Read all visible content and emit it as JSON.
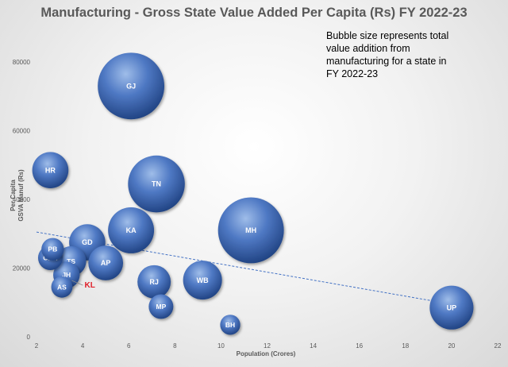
{
  "chart_data": {
    "type": "bubble",
    "title": "Manufacturing - Gross State Value Added Per Capita (Rs) FY 2022-23",
    "note": "Bubble size represents total value addition from manufacturing for a state in FY 2022-23",
    "xlabel": "Population (Crores)",
    "ylabel_line1": "Per Capita",
    "ylabel_line2": "GSVA Manuf (Rs)",
    "xlim": [
      2,
      22
    ],
    "ylim": [
      0,
      80000
    ],
    "xticks": [
      2,
      4,
      6,
      8,
      10,
      12,
      14,
      16,
      18,
      20,
      22
    ],
    "yticks": [
      0,
      20000,
      40000,
      60000,
      80000
    ],
    "trendline": {
      "x": [
        2,
        20
      ],
      "y": [
        30500,
        9500
      ]
    },
    "points": [
      {
        "label": "GJ",
        "x": 6.1,
        "y": 73000,
        "size": 4.4,
        "highlight": false
      },
      {
        "label": "HR",
        "x": 2.6,
        "y": 48500,
        "size": 1.3,
        "highlight": false
      },
      {
        "label": "TN",
        "x": 7.2,
        "y": 44500,
        "size": 3.2,
        "highlight": false
      },
      {
        "label": "MH",
        "x": 11.3,
        "y": 31000,
        "size": 4.3,
        "highlight": false
      },
      {
        "label": "KA",
        "x": 6.1,
        "y": 31000,
        "size": 2.1,
        "highlight": false
      },
      {
        "label": "GD",
        "x": 4.2,
        "y": 27500,
        "size": 1.3,
        "highlight": false
      },
      {
        "label": "PB",
        "x": 2.7,
        "y": 25500,
        "size": 0.5,
        "highlight": false
      },
      {
        "label": "CHH",
        "x": 2.6,
        "y": 23000,
        "size": 0.6,
        "highlight": false
      },
      {
        "label": "TS",
        "x": 3.5,
        "y": 22000,
        "size": 0.9,
        "highlight": false
      },
      {
        "label": "AP",
        "x": 5.0,
        "y": 21500,
        "size": 1.2,
        "highlight": false
      },
      {
        "label": "JH",
        "x": 3.3,
        "y": 18000,
        "size": 0.7,
        "highlight": false
      },
      {
        "label": "AS",
        "x": 3.1,
        "y": 14500,
        "size": 0.45,
        "highlight": false
      },
      {
        "label": "KL",
        "x": 3.6,
        "y": 15000,
        "size": 0.0,
        "highlight": true
      },
      {
        "label": "RJ",
        "x": 7.1,
        "y": 16000,
        "size": 1.1,
        "highlight": false
      },
      {
        "label": "WB",
        "x": 9.2,
        "y": 16500,
        "size": 1.5,
        "highlight": false
      },
      {
        "label": "MP",
        "x": 7.4,
        "y": 8800,
        "size": 0.6,
        "highlight": false
      },
      {
        "label": "BH",
        "x": 10.4,
        "y": 3500,
        "size": 0.4,
        "highlight": false
      },
      {
        "label": "UP",
        "x": 20.0,
        "y": 8500,
        "size": 1.9,
        "highlight": false
      }
    ],
    "colors": {
      "bubble_light": "#9fbde9",
      "bubble_mid": "#4f79c4",
      "bubble_dark": "#1d3f7e",
      "trend": "#4472c4",
      "highlight_text": "#e0202a"
    }
  }
}
